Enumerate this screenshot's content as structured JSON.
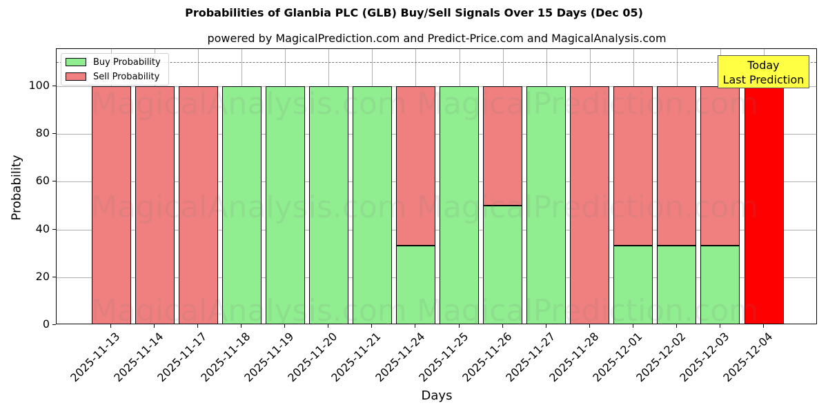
{
  "header": {
    "title": "Probabilities of Glanbia PLC (GLB) Buy/Sell Signals Over 15 Days (Dec 05)",
    "subtitle": "powered by MagicalPrediction.com and Predict-Price.com and MagicalAnalysis.com"
  },
  "axes": {
    "xlabel": "Days",
    "ylabel": "Probability",
    "yticks": [
      "0",
      "20",
      "40",
      "60",
      "80",
      "100"
    ]
  },
  "legend": {
    "buy_label": "Buy Probability",
    "sell_label": "Sell Probability"
  },
  "annotation": {
    "line1": "Today",
    "line2": "Last Prediction"
  },
  "watermarks": [
    "MagicalAnalysis.com",
    "MagicalPrediction.com"
  ],
  "colors": {
    "buy": "#90ee90",
    "sell": "#f08080",
    "last_sell": "#ff0000",
    "annotation_bg": "#ffff44"
  },
  "chart_data": {
    "type": "bar",
    "stacked": true,
    "title": "Probabilities of Glanbia PLC (GLB) Buy/Sell Signals Over 15 Days (Dec 05)",
    "subtitle": "powered by MagicalPrediction.com and Predict-Price.com and MagicalAnalysis.com",
    "xlabel": "Days",
    "ylabel": "Probability",
    "ylim": [
      0,
      115
    ],
    "yticks": [
      0,
      20,
      40,
      60,
      80,
      100
    ],
    "grid": true,
    "legend_position": "upper left",
    "reference_line": {
      "y": 110,
      "style": "dashed"
    },
    "categories": [
      "2025-11-13",
      "2025-11-14",
      "2025-11-17",
      "2025-11-18",
      "2025-11-19",
      "2025-11-20",
      "2025-11-21",
      "2025-11-24",
      "2025-11-25",
      "2025-11-26",
      "2025-11-27",
      "2025-11-28",
      "2025-12-01",
      "2025-12-02",
      "2025-12-03",
      "2025-12-04"
    ],
    "series": [
      {
        "name": "Buy Probability",
        "values": [
          0,
          0,
          0,
          100,
          100,
          100,
          100,
          33.3,
          100,
          50,
          100,
          0,
          33.3,
          33.3,
          33.3,
          0
        ]
      },
      {
        "name": "Sell Probability",
        "values": [
          100,
          100,
          100,
          0,
          0,
          0,
          0,
          66.7,
          0,
          50,
          0,
          100,
          66.7,
          66.7,
          66.7,
          100
        ]
      }
    ],
    "annotations": [
      {
        "text": "Today\nLast Prediction",
        "x": "2025-12-04"
      }
    ]
  }
}
